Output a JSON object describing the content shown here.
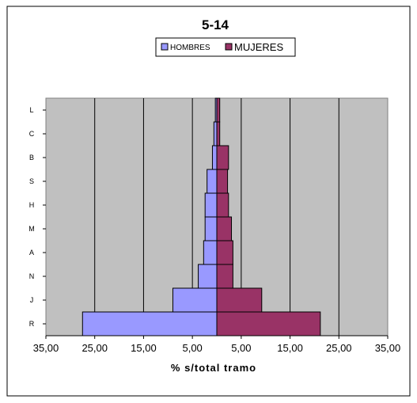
{
  "chart_data": {
    "type": "bar",
    "orientation": "horizontal-diverging",
    "title": "5-14",
    "categories": [
      "R",
      "J",
      "N",
      "A",
      "M",
      "H",
      "S",
      "B",
      "C",
      "L"
    ],
    "series": [
      {
        "name": "HOMBRES",
        "color": "#9999ff",
        "values": [
          27.5,
          9.0,
          3.8,
          2.7,
          2.4,
          2.4,
          2.0,
          0.9,
          0.6,
          0.3
        ]
      },
      {
        "name": "MUJERES",
        "color": "#993366",
        "values": [
          21.2,
          9.2,
          3.3,
          3.3,
          3.0,
          2.4,
          2.2,
          2.4,
          0.6,
          0.6
        ]
      }
    ],
    "x_range": [
      -35,
      35
    ],
    "x_ticks": [
      "35,00",
      "25,00",
      "15,00",
      "5,00",
      "5,00",
      "15,00",
      "25,00",
      "35,00"
    ],
    "xlabel": "% s/total tramo",
    "ylabel": "",
    "legend_position": "top-center",
    "plot_background": "#c0c0c0",
    "grid": true
  }
}
